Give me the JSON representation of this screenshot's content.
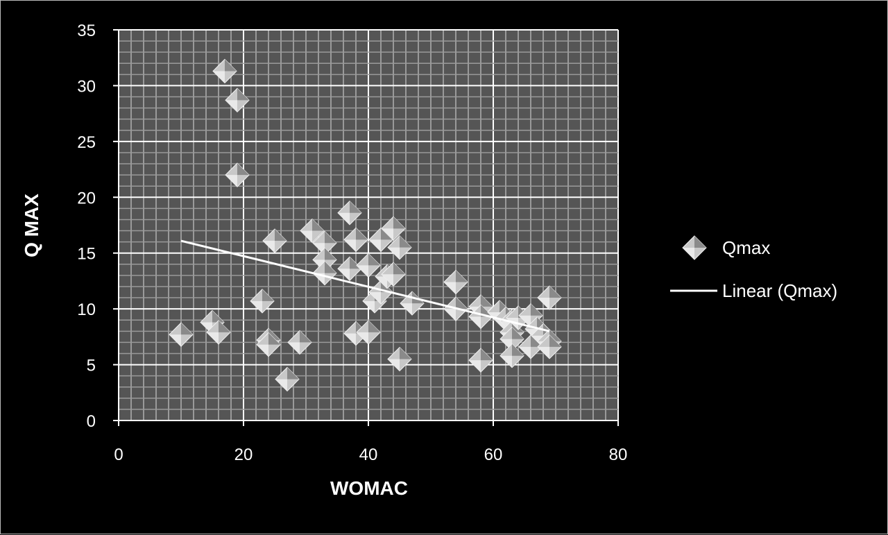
{
  "chart_data": {
    "type": "scatter",
    "xlabel": "WOMAC",
    "ylabel": "Q MAX",
    "xlim": [
      0,
      80
    ],
    "ylim": [
      0,
      35
    ],
    "xticks": [
      "0",
      "20",
      "40",
      "60",
      "80"
    ],
    "yticks": [
      "0",
      "5",
      "10",
      "15",
      "20",
      "25",
      "30",
      "35"
    ],
    "grid": true,
    "legend_position": "right",
    "colors": {
      "background": "#000000",
      "plot_area": "#555555",
      "minor_grid": "#9a9a9a",
      "major_grid": "#ffffff",
      "marker": "#c8c8c8",
      "trendline": "#ffffff",
      "text": "#ffffff"
    },
    "series": [
      {
        "name": "Qmax",
        "marker": "diamond",
        "points": [
          [
            10,
            7.7
          ],
          [
            15,
            8.8
          ],
          [
            16,
            7.9
          ],
          [
            17,
            31.3
          ],
          [
            19,
            28.7
          ],
          [
            19,
            22
          ],
          [
            23,
            10.7
          ],
          [
            24,
            7.2
          ],
          [
            24,
            6.8
          ],
          [
            25,
            16.1
          ],
          [
            27,
            3.7
          ],
          [
            29,
            7
          ],
          [
            31,
            17
          ],
          [
            33,
            15.9
          ],
          [
            33,
            14.4
          ],
          [
            33,
            13.2
          ],
          [
            37,
            18.6
          ],
          [
            37,
            13.6
          ],
          [
            38,
            16.2
          ],
          [
            38,
            7.8
          ],
          [
            40,
            13.9
          ],
          [
            40,
            7.9
          ],
          [
            41,
            10.7
          ],
          [
            42,
            16.2
          ],
          [
            42,
            11.5
          ],
          [
            43,
            12.9
          ],
          [
            44,
            17.2
          ],
          [
            44,
            13.1
          ],
          [
            45,
            15.5
          ],
          [
            45,
            5.5
          ],
          [
            47,
            10.5
          ],
          [
            54,
            12.4
          ],
          [
            54,
            10
          ],
          [
            58,
            10.2
          ],
          [
            58,
            9.3
          ],
          [
            58,
            5.4
          ],
          [
            61,
            9.7
          ],
          [
            62,
            9.1
          ],
          [
            63,
            8.9
          ],
          [
            63,
            7.9
          ],
          [
            63,
            7.3
          ],
          [
            63,
            5.8
          ],
          [
            64,
            9.2
          ],
          [
            66,
            9.4
          ],
          [
            66,
            6.6
          ],
          [
            67,
            8.2
          ],
          [
            68,
            7.6
          ],
          [
            69,
            11
          ],
          [
            69,
            7.1
          ],
          [
            69,
            6.6
          ]
        ]
      }
    ],
    "trendline": {
      "name": "Linear (Qmax)",
      "type": "linear",
      "x": [
        10,
        69
      ],
      "y": [
        16.1,
        8.0
      ]
    },
    "legend": [
      {
        "label": "Qmax",
        "symbol": "diamond"
      },
      {
        "label": "Linear (Qmax)",
        "symbol": "line"
      }
    ]
  }
}
